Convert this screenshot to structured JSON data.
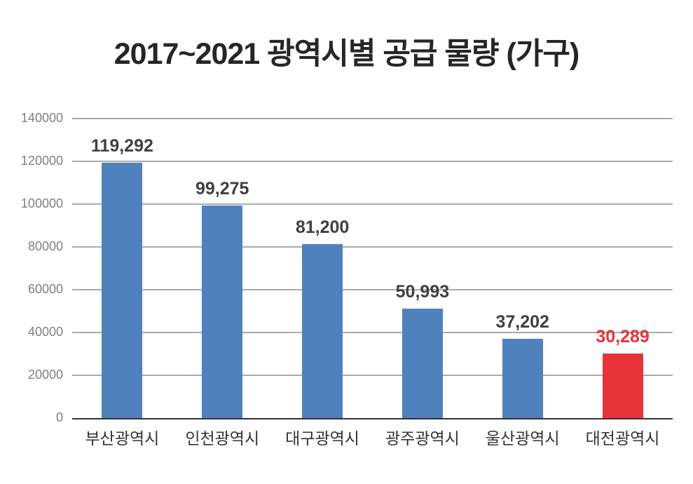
{
  "chart_data": {
    "type": "bar",
    "title": "2017~2021 광역시별 공급 물량 (가구)",
    "categories": [
      "부산광역시",
      "인천광역시",
      "대구광역시",
      "광주광역시",
      "울산광역시",
      "대전광역시"
    ],
    "values": [
      119292,
      99275,
      81200,
      50993,
      37202,
      30289
    ],
    "value_labels": [
      "119,292",
      "99,275",
      "81,200",
      "50,993",
      "37,202",
      "30,289"
    ],
    "bar_colors": [
      "#4F81BD",
      "#4F81BD",
      "#4F81BD",
      "#4F81BD",
      "#4F81BD",
      "#E73439"
    ],
    "value_label_colors": [
      "#404040",
      "#404040",
      "#404040",
      "#404040",
      "#404040",
      "#E73439"
    ],
    "xlabel": "",
    "ylabel": "",
    "ylim": [
      0,
      140000
    ],
    "yticks": [
      0,
      20000,
      40000,
      60000,
      80000,
      100000,
      120000,
      140000
    ],
    "ytick_labels": [
      "0",
      "20000",
      "40000",
      "60000",
      "80000",
      "100000",
      "120000",
      "140000"
    ],
    "grid": true,
    "legend": false,
    "colors": {
      "bar_default": "#4F81BD",
      "bar_highlight": "#E73439",
      "gridline": "#ABABAB",
      "axis_line": "#333333",
      "ytick_label": "#808080",
      "xtick_label": "#333333",
      "value_label": "#404040",
      "title": "#262626",
      "background": "#FFFFFF"
    }
  }
}
